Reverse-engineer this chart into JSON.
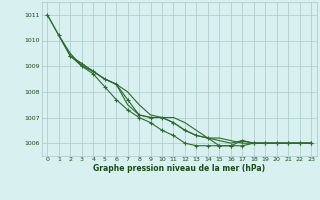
{
  "series": [
    {
      "x": [
        0,
        1,
        2,
        3,
        4,
        5,
        6,
        7,
        8,
        9,
        10,
        11,
        12,
        13,
        14,
        15,
        16,
        17,
        18,
        19,
        20,
        21,
        22,
        23
      ],
      "y": [
        1011.0,
        1010.2,
        1009.4,
        1009.1,
        1008.8,
        1008.5,
        1008.3,
        1007.7,
        1007.1,
        1007.0,
        1007.0,
        1006.8,
        1006.5,
        1006.3,
        1006.2,
        1005.9,
        1005.9,
        1006.1,
        1006.0,
        1006.0,
        1006.0,
        1006.0,
        1006.0,
        1006.0
      ],
      "marker": true
    },
    {
      "x": [
        0,
        1,
        2,
        3,
        4,
        5,
        6,
        7,
        8,
        9,
        10,
        11,
        12,
        13,
        14,
        15,
        16,
        17,
        18,
        19,
        20,
        21,
        22,
        23
      ],
      "y": [
        1011.0,
        1010.2,
        1009.4,
        1009.1,
        1008.8,
        1008.5,
        1008.3,
        1007.5,
        1007.1,
        1007.0,
        1007.0,
        1006.8,
        1006.5,
        1006.3,
        1006.2,
        1006.1,
        1006.0,
        1006.1,
        1006.0,
        1006.0,
        1006.0,
        1006.0,
        1006.0,
        1006.0
      ],
      "marker": false
    },
    {
      "x": [
        1,
        2,
        3,
        4,
        5,
        6,
        7,
        8,
        9,
        10,
        11,
        12,
        13,
        14,
        15,
        16,
        17,
        18,
        19,
        20,
        21,
        22,
        23
      ],
      "y": [
        1010.2,
        1009.5,
        1009.0,
        1008.8,
        1008.5,
        1008.3,
        1008.0,
        1007.5,
        1007.1,
        1007.0,
        1007.0,
        1006.8,
        1006.5,
        1006.2,
        1006.2,
        1006.1,
        1006.0,
        1006.0,
        1006.0,
        1006.0,
        1006.0,
        1006.0,
        1006.0
      ],
      "marker": false
    },
    {
      "x": [
        2,
        3,
        4,
        5,
        6,
        7,
        8,
        9,
        10,
        11,
        12,
        13,
        14,
        15,
        16,
        17,
        18,
        19,
        20,
        21,
        22,
        23
      ],
      "y": [
        1009.4,
        1009.0,
        1008.7,
        1008.2,
        1007.7,
        1007.3,
        1007.0,
        1006.8,
        1006.5,
        1006.3,
        1006.0,
        1005.9,
        1005.9,
        1005.9,
        1005.9,
        1005.9,
        1006.0,
        1006.0,
        1006.0,
        1006.0,
        1006.0,
        1006.0
      ],
      "marker": true
    }
  ],
  "line_color": "#2d6a2d",
  "marker_color": "#2d6a2d",
  "bg_color": "#d8f0f0",
  "grid_color": "#aac8c8",
  "xlabel": "Graphe pression niveau de la mer (hPa)",
  "xlabel_color": "#1a4a1a",
  "tick_color": "#1a4a1a",
  "ylim": [
    1005.5,
    1011.5
  ],
  "xlim": [
    -0.5,
    23.5
  ],
  "yticks": [
    1006,
    1007,
    1008,
    1009,
    1010,
    1011
  ],
  "xticks": [
    0,
    1,
    2,
    3,
    4,
    5,
    6,
    7,
    8,
    9,
    10,
    11,
    12,
    13,
    14,
    15,
    16,
    17,
    18,
    19,
    20,
    21,
    22,
    23
  ]
}
